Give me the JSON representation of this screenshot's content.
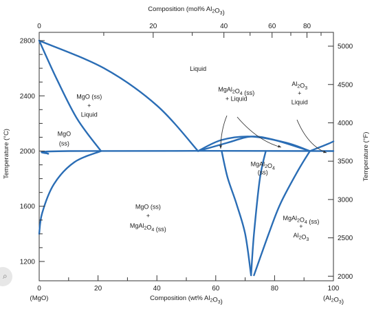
{
  "chart_data": {
    "type": "phase-diagram",
    "title": "",
    "x_bottom": {
      "label": "Composition (wt% Al₂O₃)",
      "range": [
        0,
        100
      ],
      "ticks": [
        0,
        20,
        40,
        60,
        80,
        100
      ],
      "end_labels": {
        "left": "(MgO)",
        "right": "(Al₂O₃)"
      }
    },
    "x_top": {
      "label": "Composition (mol% Al₂O₃)",
      "ticks": [
        0,
        20,
        40,
        60,
        80
      ]
    },
    "y_left": {
      "label": "Temperature (°C)",
      "range": [
        1060,
        2860
      ],
      "ticks": [
        1200,
        1600,
        2000,
        2400,
        2800
      ]
    },
    "y_right": {
      "label": "Temperature (°F)",
      "ticks": [
        2000,
        2500,
        3000,
        3500,
        4000,
        4500,
        5000
      ]
    },
    "phase_boundaries": [
      {
        "name": "",
        "points": [
          [
            0,
            2800
          ],
          [
            22,
            2600
          ],
          [
            40,
            2330
          ],
          [
            54,
            2000
          ]
        ]
      },
      {
        "name": "",
        "points": [
          [
            0,
            2800
          ],
          [
            6,
            2520
          ],
          [
            13,
            2230
          ],
          [
            21,
            2000
          ]
        ]
      },
      {
        "name": "",
        "points": [
          [
            54,
            2000
          ],
          [
            62,
            2080
          ],
          [
            72,
            2105
          ],
          [
            84,
            2060
          ],
          [
            92,
            2000
          ]
        ]
      },
      {
        "name": "",
        "points": [
          [
            54,
            2000
          ],
          [
            64,
            2060
          ],
          [
            72,
            2105
          ],
          [
            80,
            2080
          ],
          [
            92,
            2000
          ]
        ]
      },
      {
        "name": "",
        "points": [
          [
            92,
            2000
          ],
          [
            98,
            2050
          ],
          [
            100,
            2070
          ]
        ]
      },
      {
        "name": "",
        "points": [
          [
            3,
            1980
          ],
          [
            10,
            2000
          ],
          [
            100,
            2000
          ]
        ]
      },
      {
        "name": "",
        "points": [
          [
            21,
            2000
          ],
          [
            12,
            1920
          ],
          [
            5,
            1760
          ],
          [
            1,
            1550
          ],
          [
            0,
            1400
          ]
        ]
      },
      {
        "name": "",
        "points": [
          [
            62,
            2000
          ],
          [
            64,
            1810
          ],
          [
            67,
            1620
          ],
          [
            70,
            1400
          ],
          [
            72,
            1100
          ]
        ]
      },
      {
        "name": "",
        "points": [
          [
            77,
            2000
          ],
          [
            75,
            1800
          ],
          [
            73,
            1400
          ],
          [
            72,
            1100
          ]
        ]
      },
      {
        "name": "",
        "points": [
          [
            92,
            2000
          ],
          [
            88,
            1860
          ],
          [
            82,
            1620
          ],
          [
            78,
            1400
          ],
          [
            73,
            1100
          ]
        ]
      }
    ],
    "region_labels": [
      {
        "text": "Liquid",
        "x": 54,
        "y": 2580
      },
      {
        "text": "MgO (ss)",
        "x": 17,
        "y": 2380
      },
      {
        "text": "+",
        "x": 17,
        "y": 2315
      },
      {
        "text": "Liquid",
        "x": 17,
        "y": 2250
      },
      {
        "text": "MgO",
        "x": 8.5,
        "y": 2110
      },
      {
        "text": "(ss)",
        "x": 8.5,
        "y": 2040
      },
      {
        "text": "MgAl₂O₄ (ss)",
        "x": 67,
        "y": 2430
      },
      {
        "text": "+ Liquid",
        "x": 67,
        "y": 2365
      },
      {
        "text": "Al₂O₃",
        "x": 88.5,
        "y": 2470
      },
      {
        "text": "+",
        "x": 88.5,
        "y": 2405
      },
      {
        "text": "Liquid",
        "x": 88.5,
        "y": 2340
      },
      {
        "text": "MgAl₂O₄",
        "x": 76,
        "y": 1890
      },
      {
        "text": "(ss)",
        "x": 76,
        "y": 1830
      },
      {
        "text": "MgO (ss)",
        "x": 37,
        "y": 1580
      },
      {
        "text": "+",
        "x": 37,
        "y": 1515
      },
      {
        "text": "MgAl₂O₄ (ss)",
        "x": 37,
        "y": 1445
      },
      {
        "text": "MgAl₂O₄ (ss)",
        "x": 89,
        "y": 1500
      },
      {
        "text": "+",
        "x": 89,
        "y": 1440
      },
      {
        "text": "Al₂O₃",
        "x": 89,
        "y": 1375
      }
    ],
    "grid": false,
    "legend": "none"
  }
}
